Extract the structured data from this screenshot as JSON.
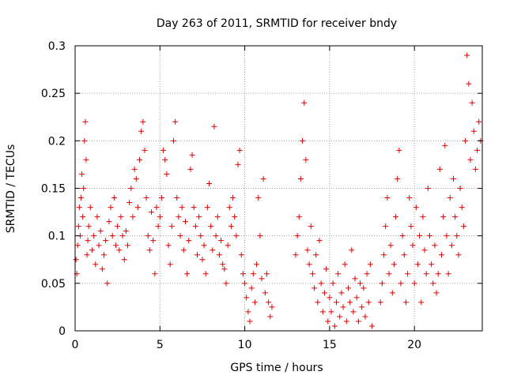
{
  "chart_data": {
    "type": "scatter",
    "title": "Day 263 of 2011, SRMTID for receiver bndy",
    "xlabel": "GPS time / hours",
    "ylabel": "SRMTID / TECUs",
    "xlim": [
      0,
      24
    ],
    "ylim": [
      0,
      0.3
    ],
    "xticks": [
      0,
      5,
      10,
      15,
      20
    ],
    "xtick_labels": [
      "0",
      "5",
      "10",
      "15",
      "20"
    ],
    "yticks": [
      0,
      0.05,
      0.1,
      0.15,
      0.2,
      0.25,
      0.3
    ],
    "ytick_labels": [
      "0",
      "0.05",
      "0.1",
      "0.15",
      "0.2",
      "0.25",
      "0.3"
    ],
    "grid": true,
    "legend": "none",
    "marker": "+",
    "color": "#e00000",
    "series": [
      {
        "name": "SRMTID",
        "points": [
          [
            0.05,
            0.075
          ],
          [
            0.1,
            0.06
          ],
          [
            0.15,
            0.09
          ],
          [
            0.2,
            0.11
          ],
          [
            0.25,
            0.13
          ],
          [
            0.3,
            0.1
          ],
          [
            0.35,
            0.14
          ],
          [
            0.4,
            0.165
          ],
          [
            0.45,
            0.12
          ],
          [
            0.5,
            0.15
          ],
          [
            0.55,
            0.2
          ],
          [
            0.6,
            0.22
          ],
          [
            0.65,
            0.18
          ],
          [
            0.7,
            0.08
          ],
          [
            0.75,
            0.095
          ],
          [
            0.8,
            0.11
          ],
          [
            0.9,
            0.13
          ],
          [
            1.0,
            0.085
          ],
          [
            1.1,
            0.1
          ],
          [
            1.2,
            0.07
          ],
          [
            1.3,
            0.12
          ],
          [
            1.4,
            0.09
          ],
          [
            1.5,
            0.105
          ],
          [
            1.6,
            0.065
          ],
          [
            1.7,
            0.08
          ],
          [
            1.8,
            0.095
          ],
          [
            1.9,
            0.05
          ],
          [
            2.0,
            0.115
          ],
          [
            2.1,
            0.13
          ],
          [
            2.2,
            0.1
          ],
          [
            2.3,
            0.14
          ],
          [
            2.4,
            0.09
          ],
          [
            2.5,
            0.11
          ],
          [
            2.6,
            0.085
          ],
          [
            2.7,
            0.12
          ],
          [
            2.8,
            0.1
          ],
          [
            2.9,
            0.075
          ],
          [
            3.0,
            0.105
          ],
          [
            3.1,
            0.09
          ],
          [
            3.2,
            0.135
          ],
          [
            3.3,
            0.15
          ],
          [
            3.4,
            0.12
          ],
          [
            3.5,
            0.17
          ],
          [
            3.6,
            0.16
          ],
          [
            3.7,
            0.13
          ],
          [
            3.8,
            0.18
          ],
          [
            3.9,
            0.21
          ],
          [
            4.0,
            0.22
          ],
          [
            4.1,
            0.19
          ],
          [
            4.2,
            0.14
          ],
          [
            4.3,
            0.1
          ],
          [
            4.4,
            0.085
          ],
          [
            4.5,
            0.125
          ],
          [
            4.6,
            0.095
          ],
          [
            4.7,
            0.06
          ],
          [
            4.8,
            0.13
          ],
          [
            4.9,
            0.11
          ],
          [
            5.0,
            0.12
          ],
          [
            5.1,
            0.14
          ],
          [
            5.2,
            0.19
          ],
          [
            5.3,
            0.18
          ],
          [
            5.4,
            0.165
          ],
          [
            5.5,
            0.09
          ],
          [
            5.6,
            0.07
          ],
          [
            5.7,
            0.11
          ],
          [
            5.8,
            0.2
          ],
          [
            5.9,
            0.22
          ],
          [
            6.0,
            0.14
          ],
          [
            6.1,
            0.12
          ],
          [
            6.2,
            0.1
          ],
          [
            6.3,
            0.13
          ],
          [
            6.4,
            0.085
          ],
          [
            6.5,
            0.115
          ],
          [
            6.6,
            0.06
          ],
          [
            6.7,
            0.095
          ],
          [
            6.8,
            0.17
          ],
          [
            6.9,
            0.185
          ],
          [
            7.0,
            0.13
          ],
          [
            7.1,
            0.11
          ],
          [
            7.2,
            0.08
          ],
          [
            7.3,
            0.12
          ],
          [
            7.4,
            0.1
          ],
          [
            7.5,
            0.075
          ],
          [
            7.6,
            0.09
          ],
          [
            7.7,
            0.06
          ],
          [
            7.8,
            0.13
          ],
          [
            7.9,
            0.155
          ],
          [
            8.0,
            0.11
          ],
          [
            8.1,
            0.085
          ],
          [
            8.2,
            0.215
          ],
          [
            8.3,
            0.1
          ],
          [
            8.4,
            0.12
          ],
          [
            8.5,
            0.08
          ],
          [
            8.6,
            0.095
          ],
          [
            8.7,
            0.07
          ],
          [
            8.8,
            0.065
          ],
          [
            8.9,
            0.05
          ],
          [
            9.0,
            0.09
          ],
          [
            9.1,
            0.13
          ],
          [
            9.2,
            0.11
          ],
          [
            9.3,
            0.14
          ],
          [
            9.4,
            0.12
          ],
          [
            9.5,
            0.1
          ],
          [
            9.6,
            0.175
          ],
          [
            9.7,
            0.19
          ],
          [
            9.8,
            0.08
          ],
          [
            9.9,
            0.06
          ],
          [
            10.0,
            0.05
          ],
          [
            10.1,
            0.035
          ],
          [
            10.2,
            0.02
          ],
          [
            10.3,
            0.01
          ],
          [
            10.4,
            0.045
          ],
          [
            10.5,
            0.06
          ],
          [
            10.6,
            0.03
          ],
          [
            10.7,
            0.07
          ],
          [
            10.8,
            0.14
          ],
          [
            10.9,
            0.1
          ],
          [
            11.0,
            0.055
          ],
          [
            11.1,
            0.16
          ],
          [
            11.2,
            0.04
          ],
          [
            11.3,
            0.06
          ],
          [
            11.4,
            0.03
          ],
          [
            11.5,
            0.015
          ],
          [
            11.6,
            0.025
          ],
          [
            13.0,
            0.08
          ],
          [
            13.1,
            0.1
          ],
          [
            13.2,
            0.12
          ],
          [
            13.3,
            0.16
          ],
          [
            13.4,
            0.2
          ],
          [
            13.5,
            0.24
          ],
          [
            13.6,
            0.18
          ],
          [
            13.7,
            0.085
          ],
          [
            13.8,
            0.07
          ],
          [
            13.9,
            0.11
          ],
          [
            14.0,
            0.06
          ],
          [
            14.1,
            0.045
          ],
          [
            14.2,
            0.08
          ],
          [
            14.3,
            0.03
          ],
          [
            14.4,
            0.095
          ],
          [
            14.5,
            0.05
          ],
          [
            14.6,
            0.02
          ],
          [
            14.7,
            0.04
          ],
          [
            14.8,
            0.065
          ],
          [
            14.9,
            0.01
          ],
          [
            15.0,
            0.035
          ],
          [
            15.1,
            0.02
          ],
          [
            15.2,
            0.05
          ],
          [
            15.3,
            0.005
          ],
          [
            15.4,
            0.03
          ],
          [
            15.5,
            0.06
          ],
          [
            15.6,
            0.015
          ],
          [
            15.7,
            0.04
          ],
          [
            15.8,
            0.025
          ],
          [
            15.9,
            0.07
          ],
          [
            16.0,
            0.01
          ],
          [
            16.1,
            0.045
          ],
          [
            16.2,
            0.03
          ],
          [
            16.3,
            0.085
          ],
          [
            16.4,
            0.02
          ],
          [
            16.5,
            0.055
          ],
          [
            16.6,
            0.035
          ],
          [
            16.7,
            0.01
          ],
          [
            16.8,
            0.05
          ],
          [
            16.9,
            0.025
          ],
          [
            17.0,
            0.045
          ],
          [
            17.1,
            0.015
          ],
          [
            17.2,
            0.06
          ],
          [
            17.3,
            0.03
          ],
          [
            17.4,
            0.07
          ],
          [
            17.5,
            0.005
          ],
          [
            18.0,
            0.03
          ],
          [
            18.1,
            0.05
          ],
          [
            18.2,
            0.08
          ],
          [
            18.3,
            0.11
          ],
          [
            18.4,
            0.14
          ],
          [
            18.5,
            0.06
          ],
          [
            18.6,
            0.09
          ],
          [
            18.7,
            0.04
          ],
          [
            18.8,
            0.07
          ],
          [
            18.9,
            0.12
          ],
          [
            19.0,
            0.16
          ],
          [
            19.1,
            0.19
          ],
          [
            19.2,
            0.05
          ],
          [
            19.3,
            0.1
          ],
          [
            19.4,
            0.08
          ],
          [
            19.5,
            0.03
          ],
          [
            19.6,
            0.06
          ],
          [
            19.7,
            0.14
          ],
          [
            19.8,
            0.11
          ],
          [
            19.9,
            0.09
          ],
          [
            20.0,
            0.05
          ],
          [
            20.1,
            0.13
          ],
          [
            20.2,
            0.07
          ],
          [
            20.3,
            0.1
          ],
          [
            20.4,
            0.03
          ],
          [
            20.5,
            0.12
          ],
          [
            20.6,
            0.085
          ],
          [
            20.7,
            0.06
          ],
          [
            20.8,
            0.15
          ],
          [
            20.9,
            0.1
          ],
          [
            21.0,
            0.07
          ],
          [
            21.1,
            0.05
          ],
          [
            21.2,
            0.09
          ],
          [
            21.3,
            0.04
          ],
          [
            21.4,
            0.06
          ],
          [
            21.5,
            0.17
          ],
          [
            21.6,
            0.08
          ],
          [
            21.7,
            0.12
          ],
          [
            21.8,
            0.195
          ],
          [
            21.9,
            0.1
          ],
          [
            22.0,
            0.06
          ],
          [
            22.1,
            0.14
          ],
          [
            22.2,
            0.09
          ],
          [
            22.3,
            0.16
          ],
          [
            22.4,
            0.12
          ],
          [
            22.5,
            0.1
          ],
          [
            22.6,
            0.08
          ],
          [
            22.7,
            0.15
          ],
          [
            22.8,
            0.13
          ],
          [
            22.9,
            0.11
          ],
          [
            23.0,
            0.2
          ],
          [
            23.1,
            0.29
          ],
          [
            23.2,
            0.26
          ],
          [
            23.3,
            0.18
          ],
          [
            23.4,
            0.24
          ],
          [
            23.5,
            0.21
          ],
          [
            23.6,
            0.17
          ],
          [
            23.7,
            0.19
          ],
          [
            23.8,
            0.22
          ],
          [
            23.9,
            0.2
          ]
        ]
      }
    ]
  }
}
